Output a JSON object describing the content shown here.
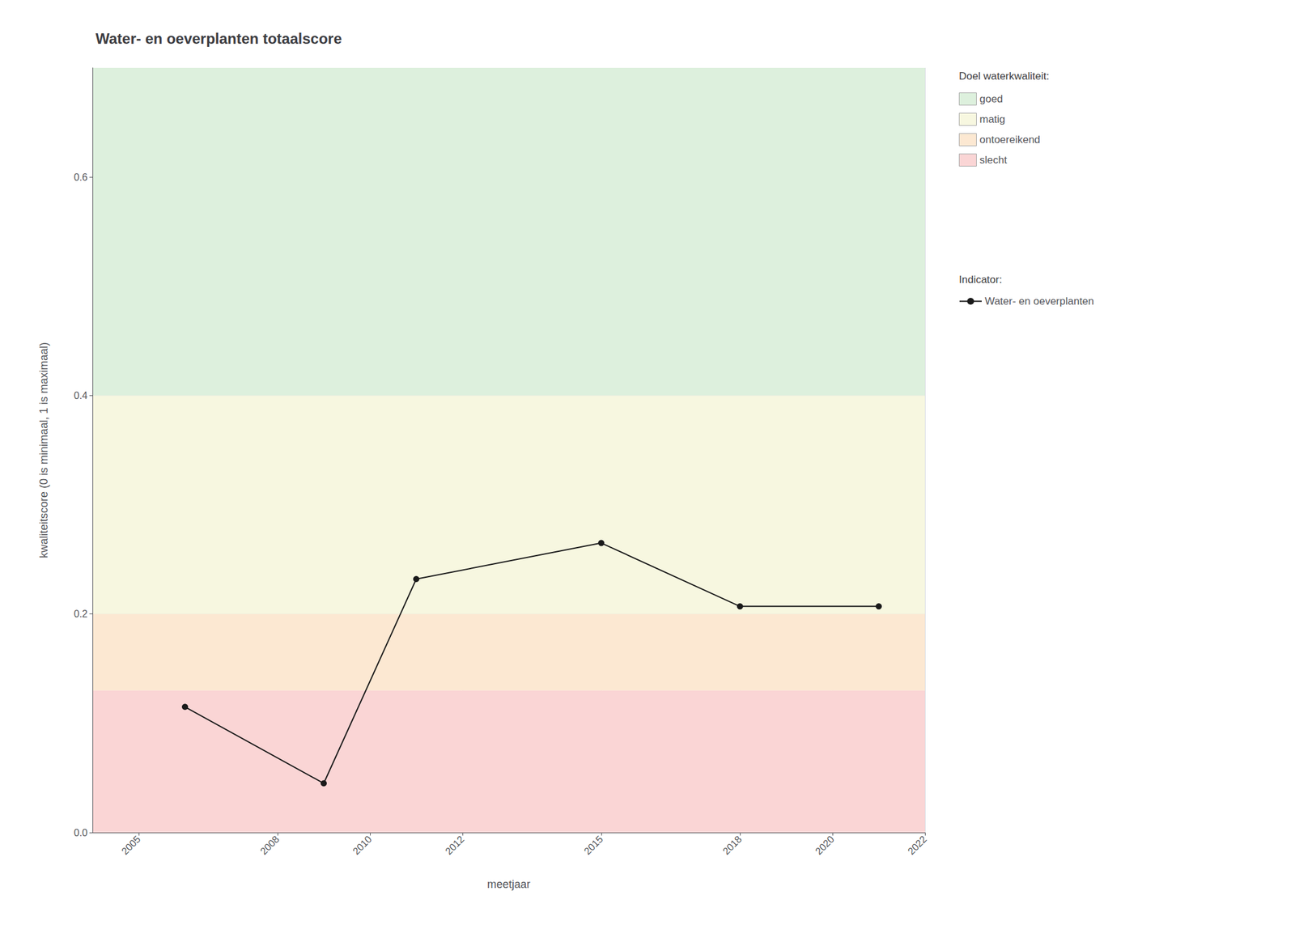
{
  "chart_data": {
    "type": "line",
    "title": "Water- en oeverplanten totaalscore",
    "xlabel": "meetjaar",
    "ylabel": "kwaliteitscore (0 is minimaal, 1 is maximaal)",
    "x": [
      2006,
      2009,
      2011,
      2015,
      2018,
      2021
    ],
    "series": [
      {
        "name": "Water- en oeverplanten",
        "color": "#1a1a1a",
        "marker": "circle",
        "values": [
          0.115,
          0.045,
          0.232,
          0.265,
          0.207,
          0.207
        ]
      }
    ],
    "xlim": [
      2004,
      2022
    ],
    "ylim": [
      0.0,
      0.7
    ],
    "xticks": [
      2005,
      2008,
      2010,
      2012,
      2015,
      2018,
      2020,
      2022
    ],
    "yticks": [
      {
        "value": 0.0,
        "label": "0.0"
      },
      0.2,
      0.4,
      0.6
    ],
    "grid": true,
    "bands_title": "Doel waterkwaliteit:",
    "bands": [
      {
        "name": "goed",
        "from": 0.4,
        "to": 0.7,
        "color": "#ddf0dd"
      },
      {
        "name": "matig",
        "from": 0.2,
        "to": 0.4,
        "color": "#f7f7e0"
      },
      {
        "name": "ontoereikend",
        "from": 0.13,
        "to": 0.2,
        "color": "#fce8d2"
      },
      {
        "name": "slecht",
        "from": 0.0,
        "to": 0.13,
        "color": "#fad5d5"
      }
    ],
    "series_legend_title": "Indicator:"
  }
}
